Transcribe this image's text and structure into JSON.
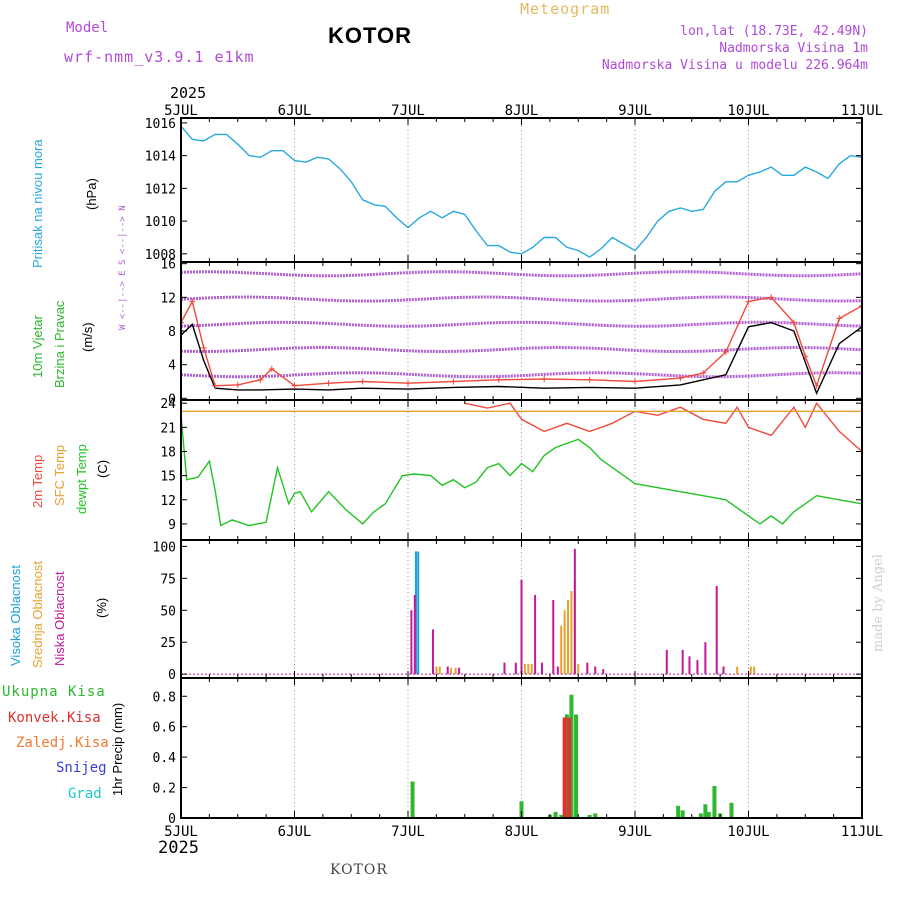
{
  "header": {
    "model_label": "Model",
    "model_name": "wrf-nmm_v3.9.1 e1km",
    "station": "KOTOR",
    "product": "Meteogram",
    "lonlat": "lon,lat (18.73E, 42.49N)",
    "altitude": "Nadmorska Visina 1m",
    "model_altitude": "Nadmorska Visina u modelu 226.964m",
    "year": "2025",
    "footer_station": "KOTOR",
    "credit": "made by Angel"
  },
  "colors": {
    "pressure": "#29a8e0",
    "temp2m": "#f04a3c",
    "sfc_temp": "#e6a030",
    "dewpoint": "#22c322",
    "wind_speed": "#000000",
    "wind_gust": "#f04a3c",
    "cloud_high": "#1ba0dc",
    "cloud_mid": "#e6a030",
    "cloud_low": "#c01a9a",
    "precip_total": "#2db82d",
    "precip_conv": "#e03030",
    "precip_snow": "#3c3cd8",
    "precip_grad": "#1cc8c8",
    "wind_icon": "#b060d0"
  },
  "x_axis": {
    "tick_labels": [
      "5JUL",
      "6JUL",
      "7JUL",
      "8JUL",
      "9JUL",
      "10JUL",
      "11JUL"
    ]
  },
  "panels": {
    "pressure": {
      "label": "Pritisak na nivou mora",
      "unit": "(hPa)"
    },
    "wind": {
      "label1": "10m Vjetar",
      "label2": "Brzina i Pravac",
      "unit": "(m/s)",
      "compass": "W <--|--> E  S <--|--> N"
    },
    "temp": {
      "label1": "2m Temp",
      "label2": "SFC Temp",
      "label3": "dewpt Temp",
      "unit": "(C)"
    },
    "cloud": {
      "label1": "Visoka Oblacnost",
      "label2": "Srednja Oblacnost",
      "label3": "Niska Oblacnost",
      "unit": "(%)"
    },
    "precip": {
      "label1": "Ukupna Kisa",
      "label2": "Konvek.Kisa",
      "label3": "Zaledj.Kisa",
      "label4": "Snijeg",
      "label5": "Grad",
      "unit": "1hr Precip (mm)"
    }
  },
  "chart_data": [
    {
      "type": "line",
      "name": "pressure",
      "x_unit": "days since 5JUL 00:00",
      "xlim": [
        0,
        6
      ],
      "ylim": [
        1007.5,
        1016.3
      ],
      "yticks": [
        1008,
        1010,
        1012,
        1014,
        1016
      ],
      "series": [
        {
          "name": "Pritisak na nivou mora",
          "color_key": "pressure",
          "x": [
            0,
            0.1,
            0.2,
            0.3,
            0.4,
            0.5,
            0.6,
            0.7,
            0.8,
            0.9,
            1.0,
            1.1,
            1.2,
            1.3,
            1.4,
            1.5,
            1.6,
            1.7,
            1.8,
            1.9,
            2.0,
            2.1,
            2.2,
            2.3,
            2.4,
            2.5,
            2.6,
            2.7,
            2.8,
            2.9,
            3.0,
            3.1,
            3.2,
            3.3,
            3.4,
            3.5,
            3.6,
            3.7,
            3.8,
            3.9,
            4.0,
            4.1,
            4.2,
            4.3,
            4.4,
            4.5,
            4.6,
            4.7,
            4.8,
            4.9,
            5.0,
            5.1,
            5.2,
            5.3,
            5.4,
            5.5,
            5.6,
            5.7,
            5.8,
            5.9,
            6.0
          ],
          "y": [
            1015.8,
            1015.0,
            1014.9,
            1015.3,
            1015.3,
            1014.7,
            1014.0,
            1013.9,
            1014.3,
            1014.3,
            1013.7,
            1013.6,
            1013.9,
            1013.8,
            1013.2,
            1012.4,
            1011.3,
            1011.0,
            1010.9,
            1010.2,
            1009.6,
            1010.2,
            1010.6,
            1010.2,
            1010.6,
            1010.4,
            1009.4,
            1008.5,
            1008.5,
            1008.1,
            1008.0,
            1008.4,
            1009.0,
            1009.0,
            1008.4,
            1008.2,
            1007.8,
            1008.3,
            1009.0,
            1008.6,
            1008.2,
            1009.0,
            1010.0,
            1010.6,
            1010.8,
            1010.6,
            1010.7,
            1011.8,
            1012.4,
            1012.4,
            1012.8,
            1013.0,
            1013.3,
            1012.8,
            1012.8,
            1013.3,
            1013.0,
            1012.6,
            1013.5,
            1014.0,
            1013.9
          ]
        }
      ]
    },
    {
      "type": "line",
      "name": "wind",
      "x_unit": "days since 5JUL 00:00",
      "xlim": [
        0,
        6
      ],
      "ylim": [
        -0.2,
        16.2
      ],
      "yticks": [
        0,
        4,
        8,
        12,
        16
      ],
      "series": [
        {
          "name": "speed",
          "color_key": "wind_speed",
          "x": [
            0,
            0.1,
            0.2,
            0.3,
            0.5,
            0.7,
            1.0,
            1.3,
            1.6,
            2.0,
            2.4,
            2.8,
            3.2,
            3.6,
            4.0,
            4.4,
            4.8,
            5.0,
            5.2,
            5.4,
            5.6,
            5.8,
            6.0
          ],
          "y": [
            7.5,
            8.8,
            4.5,
            1.2,
            1.0,
            1.0,
            1.1,
            1.0,
            1.2,
            1.1,
            1.3,
            1.4,
            1.2,
            1.3,
            1.2,
            1.6,
            2.8,
            8.5,
            9.0,
            8.0,
            0.6,
            6.5,
            8.5
          ]
        },
        {
          "name": "gust",
          "color_key": "wind_gust",
          "x": [
            0,
            0.1,
            0.2,
            0.3,
            0.5,
            0.7,
            0.8,
            1.0,
            1.3,
            1.6,
            2.0,
            2.4,
            2.8,
            3.2,
            3.6,
            4.0,
            4.4,
            4.6,
            4.8,
            5.0,
            5.2,
            5.4,
            5.5,
            5.6,
            5.8,
            6.0
          ],
          "y": [
            9.0,
            11.5,
            6.0,
            1.5,
            1.6,
            2.2,
            3.5,
            1.5,
            1.8,
            2.0,
            1.8,
            2.0,
            2.2,
            2.3,
            2.2,
            2.0,
            2.4,
            3.0,
            5.5,
            11.5,
            12.0,
            9.0,
            5.0,
            1.5,
            9.5,
            11.0
          ]
        }
      ],
      "barb_levels": [
        1.5,
        4.5,
        7.5,
        10.5,
        13.5
      ]
    },
    {
      "type": "line",
      "name": "temperature",
      "x_unit": "days since 5JUL 00:00",
      "xlim": [
        0,
        6
      ],
      "ylim": [
        7,
        24.4
      ],
      "yticks": [
        9,
        12,
        15,
        18,
        21,
        24
      ],
      "series": [
        {
          "name": "2m Temp",
          "color_key": "temp2m",
          "x": [
            2.5,
            2.7,
            2.9,
            3.0,
            3.2,
            3.4,
            3.6,
            3.8,
            4.0,
            4.2,
            4.4,
            4.6,
            4.8,
            4.9,
            5.0,
            5.2,
            5.4,
            5.5,
            5.6,
            5.8,
            6.0
          ],
          "y": [
            24.0,
            23.4,
            24.0,
            22.0,
            20.5,
            21.5,
            20.5,
            21.5,
            23.0,
            22.5,
            23.5,
            22.0,
            21.5,
            23.5,
            21.0,
            20.0,
            23.5,
            21.0,
            24.0,
            20.5,
            18.0
          ]
        },
        {
          "name": "SFC Temp",
          "color_key": "sfc_temp",
          "x": [
            0,
            6
          ],
          "y": [
            23.0,
            23.0
          ]
        },
        {
          "name": "dewpt Temp",
          "color_key": "dewpoint",
          "x": [
            0,
            0.05,
            0.15,
            0.25,
            0.3,
            0.35,
            0.45,
            0.6,
            0.75,
            0.85,
            0.95,
            1.0,
            1.05,
            1.15,
            1.3,
            1.45,
            1.6,
            1.7,
            1.8,
            1.95,
            2.05,
            2.2,
            2.3,
            2.4,
            2.5,
            2.6,
            2.7,
            2.8,
            2.9,
            3.0,
            3.1,
            3.2,
            3.3,
            3.4,
            3.5,
            3.6,
            3.7,
            3.8,
            3.9,
            4.0,
            4.2,
            4.4,
            4.6,
            4.8,
            5.0,
            5.1,
            5.2,
            5.3,
            5.4,
            5.5,
            5.6,
            5.8,
            6.0
          ],
          "y": [
            22.5,
            14.5,
            14.8,
            16.8,
            13.2,
            8.8,
            9.5,
            8.8,
            9.2,
            16.0,
            11.5,
            12.8,
            13.0,
            10.5,
            13.0,
            10.8,
            9.0,
            10.5,
            11.5,
            15.0,
            15.2,
            15.0,
            13.8,
            14.5,
            13.5,
            14.2,
            16.0,
            16.5,
            15.0,
            16.5,
            15.5,
            17.5,
            18.5,
            19.0,
            19.5,
            18.5,
            17.0,
            16.0,
            15.0,
            14.0,
            13.5,
            13.0,
            12.5,
            12.0,
            10.0,
            9.0,
            10.0,
            9.0,
            10.5,
            11.5,
            12.5,
            12.0,
            11.5
          ]
        }
      ]
    },
    {
      "type": "bar",
      "name": "cloud",
      "x_unit": "days since 5JUL 00:00",
      "xlim": [
        0,
        6
      ],
      "ylim": [
        -3,
        105
      ],
      "yticks": [
        0,
        25,
        50,
        75,
        100
      ],
      "series": [
        {
          "name": "Visoka Oblacnost",
          "color_key": "cloud_high",
          "x": [
            2.07,
            2.09
          ],
          "values": [
            96,
            96
          ]
        },
        {
          "name": "Srednja Oblacnost",
          "color_key": "cloud_mid",
          "x": [
            2.25,
            2.28,
            2.38,
            2.42,
            3.03,
            3.06,
            3.09,
            3.35,
            3.38,
            3.41,
            3.44,
            3.47,
            3.5,
            4.9,
            5.02,
            5.05
          ],
          "values": [
            6,
            6,
            5,
            5,
            8,
            8,
            8,
            38,
            50,
            58,
            65,
            75,
            8,
            6,
            6,
            6
          ]
        },
        {
          "name": "Niska Oblacnost",
          "color_key": "cloud_low",
          "x": [
            2.03,
            2.06,
            2.22,
            2.35,
            2.45,
            2.85,
            2.95,
            3.0,
            3.12,
            3.18,
            3.28,
            3.32,
            3.47,
            3.58,
            3.65,
            3.72,
            4.28,
            4.42,
            4.48,
            4.55,
            4.62,
            4.72,
            4.78
          ],
          "values": [
            50,
            62,
            35,
            6,
            5,
            9,
            9,
            74,
            62,
            9,
            58,
            6,
            98,
            9,
            6,
            4,
            19,
            19,
            14,
            11,
            25,
            69,
            6
          ]
        }
      ]
    },
    {
      "type": "bar",
      "name": "precipitation",
      "x_unit": "days since 5JUL 00:00",
      "xlim": [
        0,
        6
      ],
      "ylim": [
        0,
        0.92
      ],
      "yticks": [
        0,
        0.2,
        0.4,
        0.6,
        0.8
      ],
      "series": [
        {
          "name": "Ukupna Kisa",
          "color_key": "precip_total",
          "x": [
            2.04,
            3.0,
            3.25,
            3.3,
            3.35,
            3.4,
            3.44,
            3.48,
            3.6,
            3.65,
            4.38,
            4.42,
            4.58,
            4.62,
            4.65,
            4.7,
            4.75,
            4.85
          ],
          "values": [
            0.24,
            0.11,
            0.02,
            0.04,
            0.02,
            0.68,
            0.81,
            0.68,
            0.02,
            0.03,
            0.08,
            0.05,
            0.03,
            0.09,
            0.04,
            0.21,
            0.03,
            0.1
          ]
        },
        {
          "name": "Konvek.Kisa",
          "color_key": "precip_conv",
          "x": [
            3.38,
            3.42
          ],
          "values": [
            0.66,
            0.66
          ]
        }
      ]
    }
  ]
}
